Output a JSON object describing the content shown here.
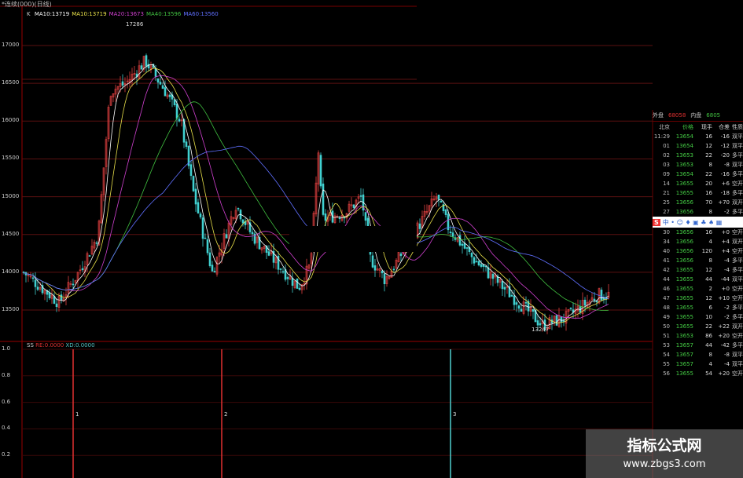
{
  "window": {
    "title": "*连续(000)(日线)"
  },
  "main_chart": {
    "label": "K",
    "ma_legend": [
      {
        "text": "MA10:13719",
        "color": "#ffffff"
      },
      {
        "text": "MA10:13719",
        "color": "#e8e04a"
      },
      {
        "text": "MA20:13673",
        "color": "#d040d0"
      },
      {
        "text": "MA40:13596",
        "color": "#40c040"
      },
      {
        "text": "MA60:13560",
        "color": "#6070ff"
      }
    ]
  },
  "chart_data": {
    "type": "candlestick",
    "y_ticks": [
      "17000",
      "16500",
      "16000",
      "15500",
      "15000",
      "14500",
      "14000",
      "13500"
    ],
    "ylim": [
      13300,
      17300
    ],
    "grid": true,
    "high_label": "17286",
    "low_label": "13247",
    "approx_close_path": [
      14000,
      13600,
      14000,
      14500,
      16400,
      16500,
      16800,
      16400,
      16000,
      15100,
      14000,
      14900,
      14500,
      14200,
      13800,
      14100,
      15600,
      14700,
      14800,
      15000,
      14200,
      13900,
      14400,
      15000,
      14600,
      14200,
      13800,
      13300,
      13400,
      13700,
      13700
    ]
  },
  "indicator": {
    "name": "SS",
    "values": [
      {
        "text": "RE:0.0000",
        "color": "#e03030"
      },
      {
        "text": "XD:0.0000",
        "color": "#50c0c0"
      }
    ],
    "y_ticks": [
      "1.0",
      "0.8",
      "0.6",
      "0.4",
      "0.2"
    ],
    "signals": [
      {
        "label": "1",
        "color": "#e03030"
      },
      {
        "label": "2",
        "color": "#e03030"
      },
      {
        "label": "3",
        "color": "#50d0d0"
      }
    ]
  },
  "tick_panel": {
    "outer_label": "外盘",
    "outer_value": "68058",
    "inner_label": "内盘",
    "inner_value": "6805",
    "columns": [
      "北京",
      "价格",
      "现手",
      "仓差",
      "性质"
    ],
    "rows": [
      [
        "11:29",
        "13654",
        "16",
        "-16",
        "双平"
      ],
      [
        "01",
        "13654",
        "12",
        "-12",
        "双平"
      ],
      [
        "02",
        "13653",
        "22",
        "-20",
        "多平"
      ],
      [
        "03",
        "13653",
        "8",
        "-8",
        "双平"
      ],
      [
        "09",
        "13654",
        "22",
        "-16",
        "多平"
      ],
      [
        "14",
        "13655",
        "20",
        "+6",
        "空开"
      ],
      [
        "21",
        "13655",
        "16",
        "-18",
        "多平"
      ],
      [
        "25",
        "13656",
        "70",
        "+70",
        "双开"
      ],
      [
        "27",
        "13656",
        "8",
        "-2",
        "多平"
      ],
      [
        "30",
        "13656",
        "16",
        "+0",
        "空开"
      ],
      [
        "34",
        "13656",
        "4",
        "+4",
        "双开"
      ],
      [
        "40",
        "13656",
        "120",
        "+4",
        "空开"
      ],
      [
        "41",
        "13656",
        "8",
        "-4",
        "多平"
      ],
      [
        "42",
        "13655",
        "12",
        "-4",
        "多平"
      ],
      [
        "44",
        "13655",
        "44",
        "-44",
        "双平"
      ],
      [
        "46",
        "13655",
        "2",
        "+0",
        "空开"
      ],
      [
        "47",
        "13655",
        "12",
        "+10",
        "空开"
      ],
      [
        "48",
        "13655",
        "6",
        "-2",
        "多平"
      ],
      [
        "49",
        "13655",
        "10",
        "-2",
        "多平"
      ],
      [
        "50",
        "13655",
        "22",
        "+22",
        "双开"
      ],
      [
        "51",
        "13653",
        "86",
        "+20",
        "空开"
      ],
      [
        "53",
        "13657",
        "44",
        "-42",
        "多平"
      ],
      [
        "54",
        "13657",
        "8",
        "-8",
        "双平"
      ],
      [
        "55",
        "13657",
        "4",
        "-4",
        "双平"
      ],
      [
        "56",
        "13655",
        "54",
        "+20",
        "空开"
      ]
    ]
  },
  "watermark": {
    "title": "指标公式网",
    "url": "www.zbgs3.com"
  }
}
